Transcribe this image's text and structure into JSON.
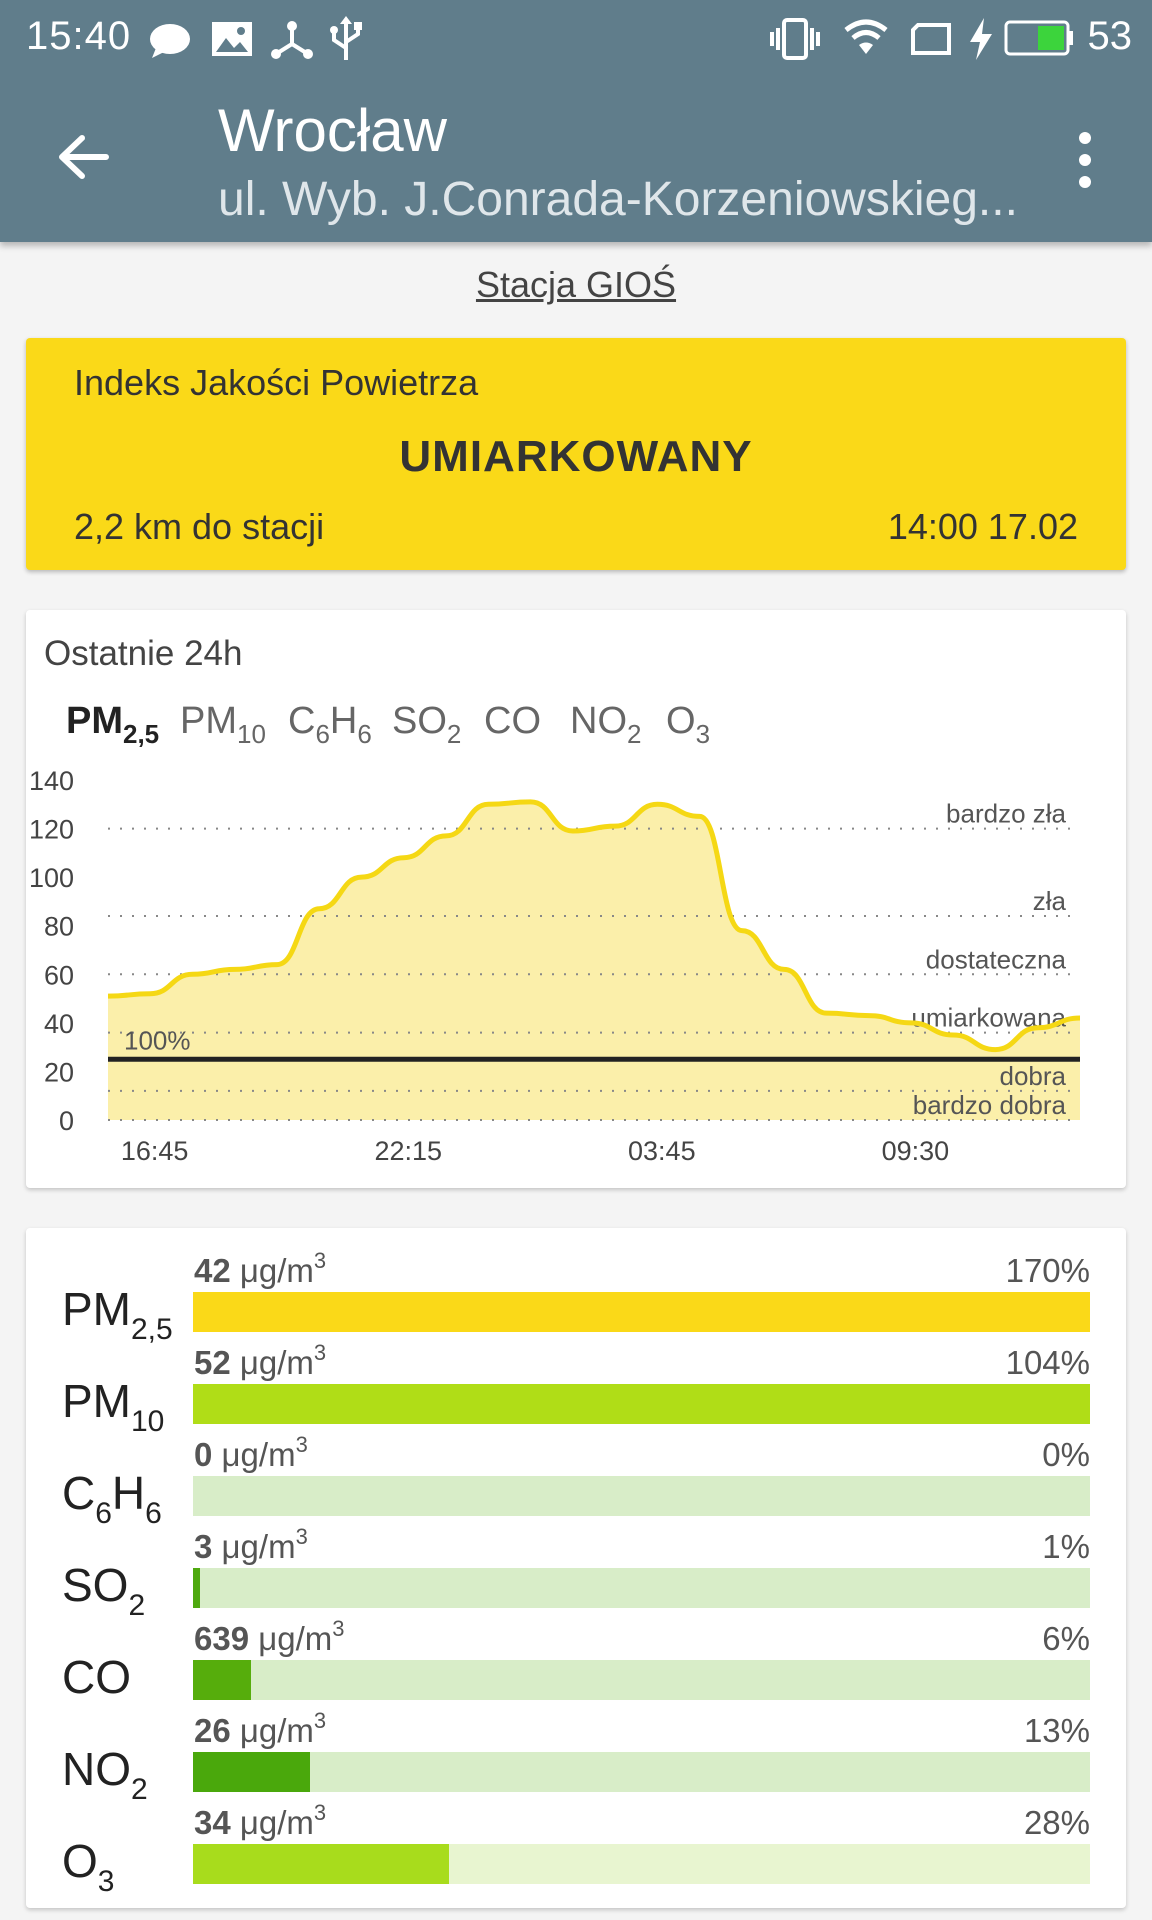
{
  "status_bar": {
    "time": "15:40",
    "battery": "53",
    "icons": [
      "chat-bubble-icon",
      "image-icon",
      "usb-tether-icon",
      "usb-icon",
      "vibrate-icon",
      "wifi-icon",
      "screen-rotation-icon",
      "charging-icon",
      "battery-icon"
    ]
  },
  "header": {
    "title": "Wrocław",
    "subtitle": "ul. Wyb. J.Conrada-Korzeniowskieg...",
    "back_icon": "arrow-back-icon",
    "menu_icon": "more-vert-icon"
  },
  "station_link": "Stacja GIOŚ",
  "aqi": {
    "label": "Indeks Jakości Powietrza",
    "level": "UMIARKOWANY",
    "distance": "2,2 km do stacji",
    "timestamp": "14:00 17.02",
    "color": "#fad918"
  },
  "chart_section": {
    "heading": "Ostatnie 24h",
    "tabs": [
      {
        "base": "PM",
        "sub": "2,5",
        "active": true
      },
      {
        "base": "PM",
        "sub": "10",
        "active": false
      },
      {
        "base": "C",
        "sub": "6",
        "base2": "H",
        "sub2": "6",
        "active": false
      },
      {
        "base": "SO",
        "sub": "2",
        "active": false
      },
      {
        "base": "CO",
        "sub": "",
        "active": false
      },
      {
        "base": "NO",
        "sub": "2",
        "active": false
      },
      {
        "base": "O",
        "sub": "3",
        "active": false
      }
    ]
  },
  "chart_data": {
    "type": "area",
    "series": [
      {
        "values": [
          51,
          52,
          60,
          62,
          64,
          87,
          100,
          108,
          117,
          130,
          131,
          119,
          121,
          130,
          125,
          78,
          62,
          44,
          43,
          40,
          35,
          29,
          38,
          42
        ]
      }
    ],
    "x": [
      0,
      1,
      2,
      3,
      4,
      5,
      6,
      7,
      8,
      9,
      10,
      11,
      12,
      13,
      14,
      15,
      16,
      17,
      18,
      19,
      20,
      21,
      22,
      23
    ],
    "x_tick_labels": [
      "16:45",
      "22:15",
      "03:45",
      "09:30"
    ],
    "x_tick_positions": [
      0.3,
      6.3,
      12.3,
      18.3
    ],
    "ylim": [
      0,
      140
    ],
    "yticks": [
      0,
      20,
      40,
      60,
      80,
      100,
      120,
      140
    ],
    "threshold_lines": [
      {
        "value": 120,
        "label": "bardzo zła"
      },
      {
        "value": 84,
        "label": "zła"
      },
      {
        "value": 60,
        "label": "dostateczna"
      },
      {
        "value": 36,
        "label": "umiarkowana"
      },
      {
        "value": 12,
        "label": "dobra"
      },
      {
        "value": 0,
        "label": "bardzo dobra"
      }
    ],
    "limit_line": {
      "value": 25,
      "label": "100%"
    },
    "grid": "dotted",
    "line_color": "#f5d814",
    "fill_color": "#fbefaa"
  },
  "pollutants": [
    {
      "base": "PM",
      "sub": "2,5",
      "value": "42",
      "unit": "μg/m",
      "unit_sup": "3",
      "percent": "170%",
      "fill_fraction": 1.0,
      "bar_color": "#fad918",
      "track_color": "#fad918"
    },
    {
      "base": "PM",
      "sub": "10",
      "value": "52",
      "unit": "μg/m",
      "unit_sup": "3",
      "percent": "104%",
      "fill_fraction": 1.0,
      "bar_color": "#b0dd17",
      "track_color": "#b0dd17"
    },
    {
      "base": "C",
      "sub": "6",
      "base2": "H",
      "sub2": "6",
      "value": "0",
      "unit": "μg/m",
      "unit_sup": "3",
      "percent": "0%",
      "fill_fraction": 0.0,
      "bar_color": "#5cb214",
      "track_color": "#d8edc8"
    },
    {
      "base": "SO",
      "sub": "2",
      "value": "3",
      "unit": "μg/m",
      "unit_sup": "3",
      "percent": "1%",
      "fill_fraction": 0.008,
      "bar_color": "#4ea90f",
      "track_color": "#d8edc8"
    },
    {
      "base": "CO",
      "sub": "",
      "value": "639",
      "unit": "μg/m",
      "unit_sup": "3",
      "percent": "6%",
      "fill_fraction": 0.065,
      "bar_color": "#56ad0c",
      "track_color": "#d8edc8"
    },
    {
      "base": "NO",
      "sub": "2",
      "value": "26",
      "unit": "μg/m",
      "unit_sup": "3",
      "percent": "13%",
      "fill_fraction": 0.13,
      "bar_color": "#4aa80c",
      "track_color": "#d8edc8"
    },
    {
      "base": "O",
      "sub": "3",
      "value": "34",
      "unit": "μg/m",
      "unit_sup": "3",
      "percent": "28%",
      "fill_fraction": 0.285,
      "bar_color": "#a8dc1c",
      "track_color": "#e8f5d0"
    }
  ]
}
